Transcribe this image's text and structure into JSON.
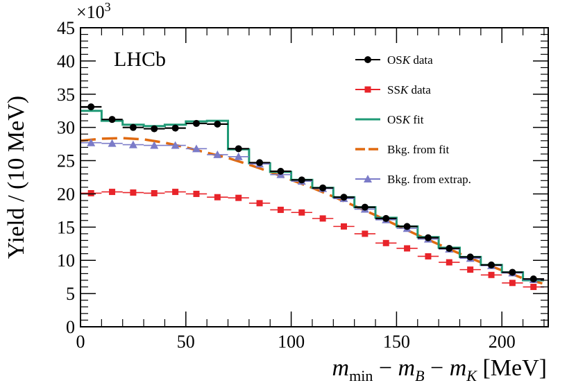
{
  "chart_data": {
    "type": "line",
    "experiment_label": "LHCb",
    "xlabel": "m_min − m_B − m_K [MeV]",
    "xlabel_parts": {
      "m": "m",
      "min": "min",
      "mB": "m",
      "B": "B",
      "mK": "m",
      "K": "K",
      "unit": "[MeV]"
    },
    "ylabel": "Yield / (10 MeV)",
    "y_multiplier": "×10",
    "y_multiplier_exp": "3",
    "xlim": [
      0,
      222
    ],
    "ylim": [
      0,
      45
    ],
    "x_ticks": [
      0,
      50,
      100,
      150,
      200
    ],
    "y_ticks": [
      0,
      5,
      10,
      15,
      20,
      25,
      30,
      35,
      40,
      45
    ],
    "bin_width": 10,
    "bin_centers": [
      5,
      15,
      25,
      35,
      45,
      55,
      65,
      75,
      85,
      95,
      105,
      115,
      125,
      135,
      145,
      155,
      165,
      175,
      185,
      195,
      205,
      215
    ],
    "legend": {
      "position": "top-right",
      "entries": [
        {
          "key": "osk_data",
          "label": "OSK data",
          "prefix": "OS",
          "italic": "K",
          "suffix": " data"
        },
        {
          "key": "ssk_data",
          "label": "SSK data",
          "prefix": "SS",
          "italic": "K",
          "suffix": " data"
        },
        {
          "key": "osk_fit",
          "label": "OSK fit",
          "prefix": "OS",
          "italic": "K",
          "suffix": " fit"
        },
        {
          "key": "bkg_fit",
          "label": "Bkg. from fit",
          "prefix": "Bkg. from fit",
          "italic": "",
          "suffix": ""
        },
        {
          "key": "bkg_extrap",
          "label": "Bkg. from extrap.",
          "prefix": "Bkg. from extrap.",
          "italic": "",
          "suffix": ""
        }
      ]
    },
    "series": [
      {
        "name": "OSK data",
        "key": "osk_data",
        "style": "points",
        "marker": "circle",
        "color": "#000000",
        "values": [
          33.1,
          31.2,
          30.0,
          29.8,
          29.9,
          30.6,
          30.5,
          26.8,
          24.7,
          23.4,
          22.1,
          20.9,
          19.5,
          18.0,
          16.3,
          15.1,
          13.4,
          11.8,
          10.5,
          9.3,
          8.2,
          7.2
        ]
      },
      {
        "name": "SSK data",
        "key": "ssk_data",
        "style": "points",
        "marker": "square",
        "color": "#e8242a",
        "values": [
          20.1,
          20.3,
          20.2,
          20.1,
          20.3,
          20.0,
          19.5,
          19.4,
          18.6,
          17.6,
          17.2,
          16.3,
          15.1,
          14.0,
          12.6,
          11.8,
          10.6,
          9.7,
          8.6,
          7.8,
          6.6,
          6.0
        ]
      },
      {
        "name": "Bkg. from extrap.",
        "key": "bkg_extrap",
        "style": "points",
        "marker": "triangle",
        "color": "#7b7bc8",
        "values": [
          27.7,
          27.6,
          27.4,
          27.3,
          27.3,
          26.8,
          25.9,
          25.6,
          24.5,
          22.9,
          21.9,
          20.8,
          19.3,
          17.7,
          16.1,
          14.8,
          13.2,
          11.7,
          10.3,
          9.2,
          8.1,
          7.1
        ]
      },
      {
        "name": "OSK fit",
        "key": "osk_fit",
        "style": "step",
        "color": "#1f9a76",
        "values": [
          32.5,
          31.0,
          30.4,
          30.2,
          30.4,
          30.9,
          31.0,
          26.7,
          24.6,
          23.3,
          22.1,
          20.9,
          19.5,
          18.0,
          16.4,
          15.1,
          13.5,
          11.9,
          10.5,
          9.3,
          8.2,
          7.0
        ]
      },
      {
        "name": "Bkg. from fit",
        "key": "bkg_fit",
        "style": "dashed-curve",
        "color": "#e06a10",
        "x": [
          0,
          10,
          20,
          30,
          40,
          50,
          60,
          70,
          80,
          90,
          100,
          110,
          120,
          130,
          140,
          150,
          160,
          170,
          180,
          190,
          200,
          210,
          222
        ],
        "values": [
          28.0,
          28.3,
          28.4,
          28.2,
          27.7,
          27.0,
          26.2,
          25.4,
          24.4,
          23.3,
          22.1,
          20.9,
          19.6,
          18.2,
          16.8,
          15.3,
          13.8,
          12.4,
          11.0,
          9.7,
          8.5,
          7.3,
          6.3
        ]
      }
    ]
  }
}
